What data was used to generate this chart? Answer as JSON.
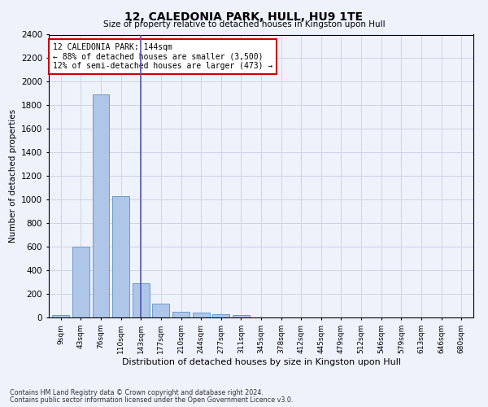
{
  "title": "12, CALEDONIA PARK, HULL, HU9 1TE",
  "subtitle": "Size of property relative to detached houses in Kingston upon Hull",
  "xlabel": "Distribution of detached houses by size in Kingston upon Hull",
  "ylabel": "Number of detached properties",
  "bar_labels": [
    "9sqm",
    "43sqm",
    "76sqm",
    "110sqm",
    "143sqm",
    "177sqm",
    "210sqm",
    "244sqm",
    "277sqm",
    "311sqm",
    "345sqm",
    "378sqm",
    "412sqm",
    "445sqm",
    "479sqm",
    "512sqm",
    "546sqm",
    "579sqm",
    "613sqm",
    "646sqm",
    "680sqm"
  ],
  "bar_values": [
    20,
    600,
    1890,
    1030,
    290,
    115,
    50,
    40,
    28,
    20,
    0,
    0,
    0,
    0,
    0,
    0,
    0,
    0,
    0,
    0,
    0
  ],
  "bar_color": "#aec6e8",
  "bar_edge_color": "#5b8fc4",
  "highlight_index": 4,
  "highlight_line_color": "#5555aa",
  "ylim": [
    0,
    2400
  ],
  "yticks": [
    0,
    200,
    400,
    600,
    800,
    1000,
    1200,
    1400,
    1600,
    1800,
    2000,
    2200,
    2400
  ],
  "annotation_text": "12 CALEDONIA PARK: 144sqm\n← 88% of detached houses are smaller (3,500)\n12% of semi-detached houses are larger (473) →",
  "annotation_box_color": "#ffffff",
  "annotation_border_color": "#cc0000",
  "footnote1": "Contains HM Land Registry data © Crown copyright and database right 2024.",
  "footnote2": "Contains public sector information licensed under the Open Government Licence v3.0.",
  "bg_color": "#eef2fb",
  "grid_color": "#c8cfe0"
}
